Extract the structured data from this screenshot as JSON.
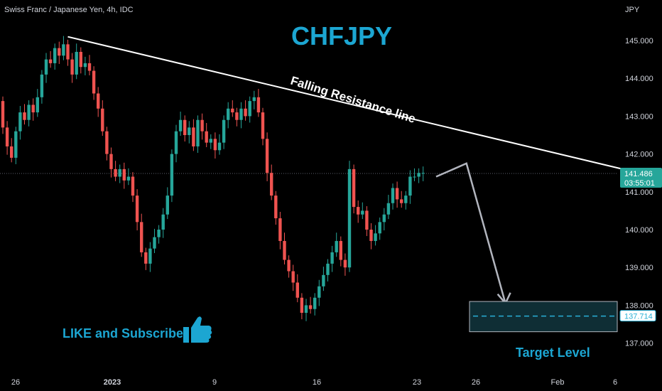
{
  "header": {
    "symbol_description": "Swiss Franc / Japanese Yen, 4h, IDC",
    "title": "CHFJPY"
  },
  "price_axis": {
    "unit": "JPY",
    "ticks": [
      "145.000",
      "144.000",
      "143.000",
      "142.000",
      "141.000",
      "140.000",
      "139.000",
      "138.000",
      "137.000"
    ]
  },
  "time_axis": {
    "labels": [
      {
        "text": "26",
        "bold": false
      },
      {
        "text": "2023",
        "bold": true
      },
      {
        "text": "9",
        "bold": false
      },
      {
        "text": "16",
        "bold": false
      },
      {
        "text": "23",
        "bold": false
      },
      {
        "text": "26",
        "bold": false
      },
      {
        "text": "Feb",
        "bold": false
      },
      {
        "text": "6",
        "bold": false
      }
    ]
  },
  "price_tag": {
    "price": "141.486",
    "countdown": "03:55:01",
    "color": "#26a69a"
  },
  "target_tag": {
    "price": "137.714",
    "color": "#2ab0d6"
  },
  "annotations": {
    "resistance_label": "Falling Resistance line",
    "like_text": "LIKE and Subscribe",
    "target_label": "Target Level",
    "thumbs_icon": "thumbs-up-icon"
  },
  "colors": {
    "up": "#26a69a",
    "down": "#ef5350",
    "accent": "#1ca6d2",
    "line": "#ffffff",
    "arrow": "#b2b5be"
  },
  "chart_data": {
    "type": "candlestick",
    "title": "CHFJPY",
    "subtitle": "Swiss Franc / Japanese Yen, 4h, IDC",
    "ylabel": "JPY",
    "ylim": [
      136.6,
      145.75
    ],
    "x": [
      "Dec 26",
      "2023",
      "Jan 9",
      "Jan 16",
      "Jan 23",
      "Jan 26",
      "Feb",
      "Feb 6"
    ],
    "grid": false,
    "series": [
      {
        "values": [
          [
            143.4,
            142.7
          ],
          [
            142.7,
            142.2
          ],
          [
            142.2,
            141.9
          ],
          [
            141.9,
            142.6
          ],
          [
            142.6,
            143.1
          ],
          [
            143.1,
            142.9
          ],
          [
            142.9,
            143.3
          ],
          [
            143.3,
            143.1
          ],
          [
            143.1,
            143.5
          ],
          [
            143.5,
            144.1
          ],
          [
            144.1,
            144.5
          ],
          [
            144.5,
            144.4
          ],
          [
            144.4,
            144.8
          ],
          [
            144.8,
            144.6
          ],
          [
            144.6,
            144.9
          ],
          [
            144.9,
            144.5
          ],
          [
            144.5,
            144.1
          ],
          [
            144.1,
            144.7
          ],
          [
            144.7,
            144.3
          ],
          [
            144.3,
            144.4
          ],
          [
            144.4,
            144.2
          ],
          [
            144.2,
            143.6
          ],
          [
            143.6,
            143.2
          ],
          [
            143.2,
            142.6
          ],
          [
            142.6,
            142.0
          ],
          [
            142.0,
            141.6
          ],
          [
            141.6,
            141.4
          ],
          [
            141.4,
            141.6
          ],
          [
            141.6,
            141.3
          ],
          [
            141.3,
            141.4
          ],
          [
            141.4,
            140.9
          ],
          [
            140.9,
            140.2
          ],
          [
            140.2,
            139.4
          ],
          [
            139.4,
            139.1
          ],
          [
            139.1,
            139.5
          ],
          [
            139.5,
            139.8
          ],
          [
            139.8,
            140.0
          ],
          [
            140.0,
            140.4
          ],
          [
            140.4,
            140.9
          ],
          [
            140.9,
            142.0
          ],
          [
            142.0,
            142.6
          ],
          [
            142.6,
            142.9
          ],
          [
            142.9,
            142.5
          ],
          [
            142.5,
            142.7
          ],
          [
            142.7,
            142.2
          ],
          [
            142.2,
            142.9
          ],
          [
            142.9,
            142.6
          ],
          [
            142.6,
            142.3
          ],
          [
            142.3,
            142.4
          ],
          [
            142.4,
            142.1
          ],
          [
            142.1,
            142.3
          ],
          [
            142.3,
            142.9
          ],
          [
            142.9,
            143.2
          ],
          [
            143.2,
            143.1
          ],
          [
            143.1,
            142.9
          ],
          [
            142.9,
            143.2
          ],
          [
            143.2,
            143.0
          ],
          [
            143.0,
            143.4
          ],
          [
            143.4,
            143.5
          ],
          [
            143.5,
            143.1
          ],
          [
            143.1,
            142.4
          ],
          [
            142.4,
            141.5
          ],
          [
            141.5,
            140.9
          ],
          [
            140.9,
            140.3
          ],
          [
            140.3,
            139.7
          ],
          [
            139.7,
            139.2
          ],
          [
            139.2,
            138.9
          ],
          [
            138.9,
            138.6
          ],
          [
            138.6,
            138.2
          ],
          [
            138.2,
            137.8
          ],
          [
            137.8,
            138.0
          ],
          [
            138.0,
            137.9
          ],
          [
            137.9,
            138.2
          ],
          [
            138.2,
            138.5
          ],
          [
            138.5,
            138.8
          ],
          [
            138.8,
            139.1
          ],
          [
            139.1,
            139.4
          ],
          [
            139.4,
            139.7
          ],
          [
            139.7,
            139.2
          ],
          [
            139.2,
            139.0
          ],
          [
            139.0,
            141.6
          ],
          [
            141.6,
            140.6
          ],
          [
            140.6,
            140.4
          ],
          [
            140.4,
            140.5
          ],
          [
            140.5,
            140.0
          ],
          [
            140.0,
            139.7
          ],
          [
            139.7,
            139.9
          ],
          [
            139.9,
            140.2
          ],
          [
            140.2,
            140.4
          ],
          [
            140.4,
            140.7
          ],
          [
            140.7,
            141.1
          ],
          [
            141.1,
            140.8
          ],
          [
            140.8,
            140.7
          ],
          [
            140.7,
            140.9
          ],
          [
            140.9,
            141.4
          ],
          [
            141.4,
            141.4
          ],
          [
            141.4,
            141.5
          ],
          [
            141.5,
            141.5
          ]
        ]
      }
    ],
    "resistance_line": {
      "from": {
        "index": 15,
        "price": 145.1
      },
      "to": {
        "index": 165,
        "price": 141.0
      }
    },
    "projection": [
      {
        "index": 100,
        "price": 141.4
      },
      {
        "index": 107,
        "price": 141.75
      },
      {
        "index": 116,
        "price": 138.05
      }
    ],
    "last_price": 141.486,
    "target_zone": [
      137.3,
      138.1
    ],
    "target_price": 137.714
  }
}
